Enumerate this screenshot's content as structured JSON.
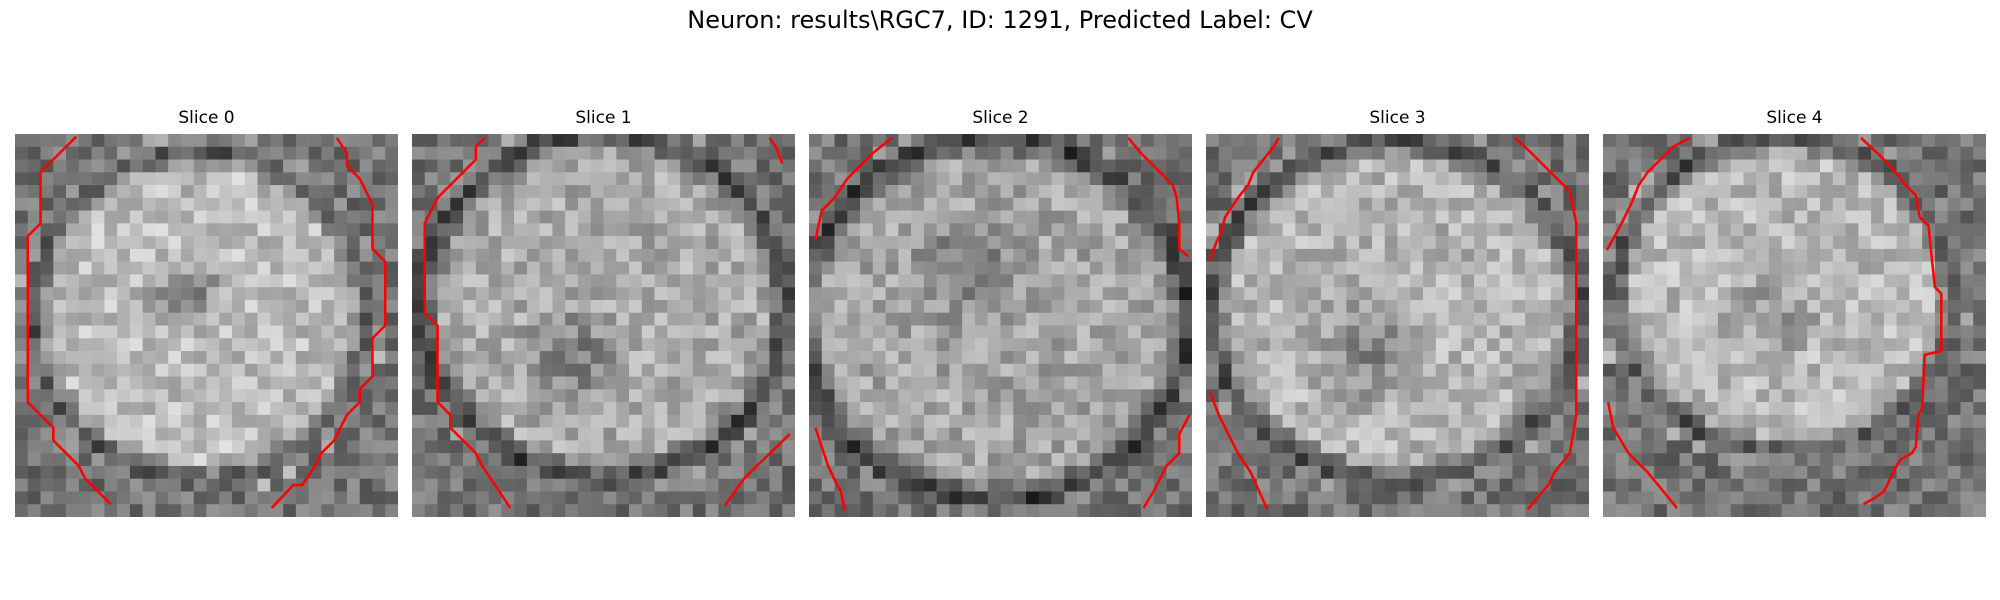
{
  "figure": {
    "title": "Neuron: results\\RGC7, ID: 1291, Predicted Label: CV"
  },
  "slices": [
    {
      "title": "Slice 0"
    },
    {
      "title": "Slice 1"
    },
    {
      "title": "Slice 2"
    },
    {
      "title": "Slice 3"
    },
    {
      "title": "Slice 4"
    }
  ],
  "colors": {
    "contour": "#ff0000",
    "background": "#ffffff"
  }
}
